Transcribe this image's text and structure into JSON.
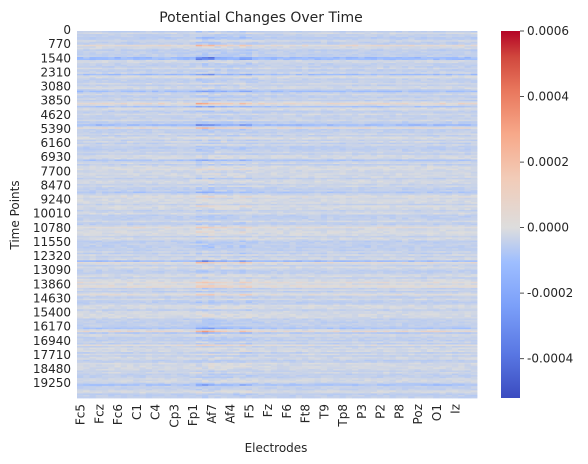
{
  "chart_data": {
    "type": "heatmap",
    "title": "Potential Changes Over Time",
    "xlabel": "Electrodes",
    "ylabel": "Time Points",
    "x_tick_labels": [
      "Fc5",
      "Fcz",
      "Fc6",
      "C1",
      "C4",
      "Cp3",
      "Fp1",
      "Af7",
      "Af4",
      "F5",
      "Fz",
      "F6",
      "Ft8",
      "T9",
      "Tp8",
      "P3",
      "P2",
      "P8",
      "Poz",
      "O1",
      "Iz"
    ],
    "y_tick_labels": [
      "0",
      "770",
      "1540",
      "2310",
      "3080",
      "3850",
      "4620",
      "5390",
      "6160",
      "6930",
      "7700",
      "8470",
      "9240",
      "10010",
      "10780",
      "11550",
      "12320",
      "13090",
      "13860",
      "14630",
      "15400",
      "16170",
      "16940",
      "17710",
      "18480",
      "19250"
    ],
    "y_range": [
      0,
      19999
    ],
    "n_electrodes": 64,
    "n_time_points": 20000,
    "colorbar": {
      "colormap": "coolwarm",
      "vmin": -0.00052,
      "vmax": 0.0006,
      "ticks": [
        "-0.0004",
        "-0.0002",
        "0.0000",
        "0.0002",
        "0.0004",
        "0.0006"
      ],
      "tick_values": [
        -0.0004,
        -0.0002,
        0.0,
        0.0002,
        0.0004,
        0.0006
      ]
    },
    "colors": {
      "low": "#3b4cc0",
      "mid": "#dddddd",
      "high": "#b40426"
    }
  }
}
